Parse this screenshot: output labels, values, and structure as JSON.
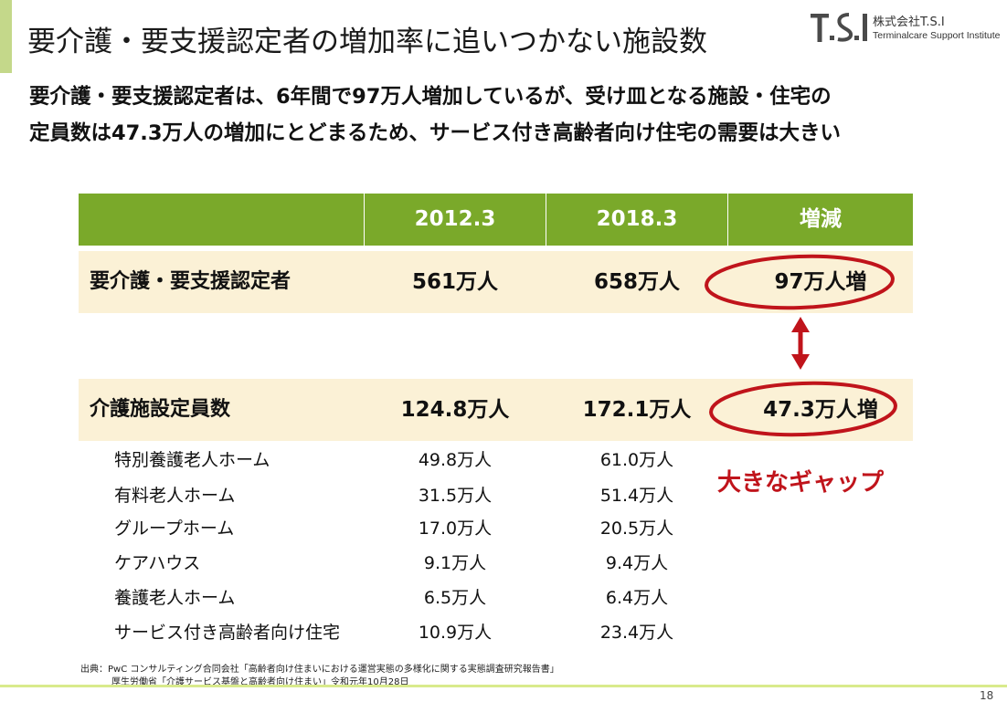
{
  "slide": {
    "title": "要介護・要支援認定者の増加率に追いつかない施設数",
    "subtitle_line1": "要介護・要支援認定者は、6年間で97万人増加しているが、受け皿となる施設・住宅の",
    "subtitle_line2": "定員数は47.3万人の増加にとどまるため、サービス付き高齢者向け住宅の需要は大きい",
    "page_number": "18"
  },
  "logo": {
    "mark_text": "T.S.I",
    "company_name": "株式会社T.S.I",
    "english_name": "Terminalcare Support Institute"
  },
  "table": {
    "headers": [
      "",
      "2012.3",
      "2018.3",
      "増減"
    ],
    "band_rows": [
      {
        "label": "要介護・要支援認定者",
        "v2012": "561万人",
        "v2018": "658万人",
        "change": "97万人増"
      },
      {
        "label": "介護施設定員数",
        "v2012": "124.8万人",
        "v2018": "172.1万人",
        "change": "47.3万人増"
      }
    ],
    "detail_rows": [
      {
        "label": "特別養護老人ホーム",
        "v2012": "49.8万人",
        "v2018": "61.0万人"
      },
      {
        "label": "有料老人ホーム",
        "v2012": "31.5万人",
        "v2018": "51.4万人"
      },
      {
        "label": "グループホーム",
        "v2012": "17.0万人",
        "v2018": "20.5万人"
      },
      {
        "label": "ケアハウス",
        "v2012": "9.1万人",
        "v2018": "9.4万人"
      },
      {
        "label": "養護老人ホーム",
        "v2012": "6.5万人",
        "v2018": "6.4万人"
      },
      {
        "label": "サービス付き高齢者向け住宅",
        "v2012": "10.9万人",
        "v2018": "23.4万人"
      }
    ]
  },
  "callout": {
    "gap_text": "大きなギャップ"
  },
  "source": {
    "line1": "出典：PwC コンサルティング合同会社「高齢者向け住まいにおける運営実態の多様化に関する実態調査研究報告書」",
    "line2": "厚生労働省「介護サービス基盤と高齢者向け住まい」令和元年10月28日"
  },
  "colors": {
    "header_green": "#7aa92a",
    "band_cream": "#fbf1d6",
    "accent_red": "#c0141b",
    "accent_bar": "#c4d88a",
    "footer_line": "#d9ea8c"
  }
}
